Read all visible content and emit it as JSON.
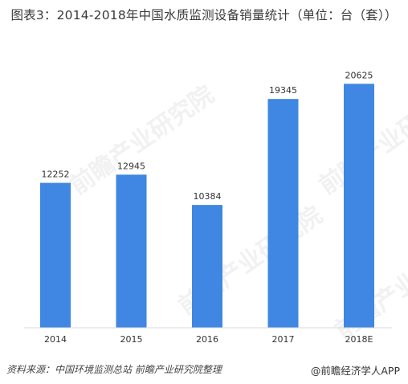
{
  "title": "图表3：2014-2018年中国水质监测设备销量统计（单位：台（套））",
  "footer": {
    "source": "资料来源：中国环境监测总站 前瞻产业研究院整理",
    "brand": "@前瞻经济学人APP"
  },
  "watermark": {
    "text": "前瞻产业研究院"
  },
  "colors": {
    "bar": "#3f87e2",
    "axis": "#d9d9d9",
    "text": "#333333"
  },
  "chart_data": {
    "type": "bar",
    "title": "图表3：2014-2018年中国水质监测设备销量统计（单位：台（套））",
    "categories": [
      "2014",
      "2015",
      "2016",
      "2017",
      "2018E"
    ],
    "values": [
      12252,
      12945,
      10384,
      19345,
      20625
    ],
    "ylim": [
      0,
      23500
    ],
    "grid": false,
    "legend": "none",
    "xlabel": "",
    "ylabel": ""
  }
}
